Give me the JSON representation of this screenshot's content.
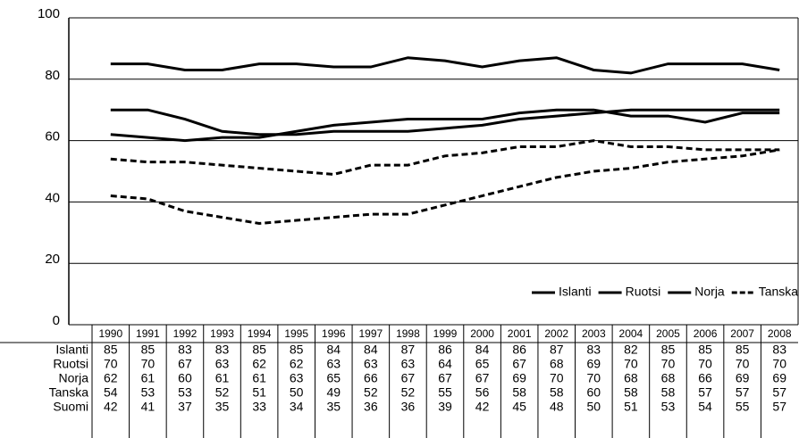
{
  "chart_data": {
    "type": "line",
    "categories": [
      "1990",
      "1991",
      "1992",
      "1993",
      "1994",
      "1995",
      "1996",
      "1997",
      "1998",
      "1999",
      "2000",
      "2001",
      "2002",
      "2003",
      "2004",
      "2005",
      "2006",
      "2007",
      "2008"
    ],
    "series": [
      {
        "name": "Islanti",
        "color": "#000000",
        "dash": false,
        "values": [
          85,
          85,
          83,
          83,
          85,
          85,
          84,
          84,
          87,
          86,
          84,
          86,
          87,
          83,
          82,
          85,
          85,
          85,
          83
        ]
      },
      {
        "name": "Ruotsi",
        "color": "#000000",
        "dash": false,
        "values": [
          70,
          70,
          67,
          63,
          62,
          62,
          63,
          63,
          63,
          64,
          65,
          67,
          68,
          69,
          70,
          70,
          70,
          70,
          70
        ]
      },
      {
        "name": "Norja",
        "color": "#000000",
        "dash": false,
        "values": [
          62,
          61,
          60,
          61,
          61,
          63,
          65,
          66,
          67,
          67,
          67,
          69,
          70,
          70,
          68,
          68,
          66,
          69,
          69
        ]
      },
      {
        "name": "Tanska",
        "color": "#000000",
        "dash": true,
        "values": [
          54,
          53,
          53,
          52,
          51,
          50,
          49,
          52,
          52,
          55,
          56,
          58,
          58,
          60,
          58,
          58,
          57,
          57,
          57
        ]
      },
      {
        "name": "Suomi",
        "color": "#000000",
        "dash": true,
        "values": [
          42,
          41,
          37,
          35,
          33,
          34,
          35,
          36,
          36,
          39,
          42,
          45,
          48,
          50,
          51,
          53,
          54,
          55,
          57
        ]
      }
    ],
    "ylim": [
      0,
      100
    ],
    "yticks": [
      0,
      20,
      40,
      60,
      80,
      100
    ],
    "grid": true,
    "legend": "bottom-right"
  }
}
